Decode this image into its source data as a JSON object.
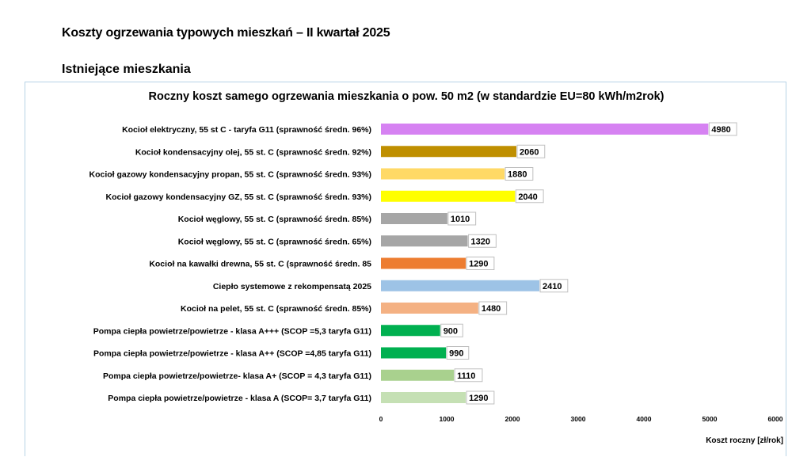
{
  "slide": {
    "title": "Koszty ogrzewania typowych mieszkań – II kwartał 2025",
    "subtitle": "Istniejące mieszkania"
  },
  "chart_data": {
    "type": "bar",
    "orientation": "horizontal",
    "title": "Roczny koszt samego ogrzewania mieszkania o pow. 50 m2 (w standardzie  EU=80 kWh/m2rok)",
    "xlabel": "Koszt roczny [zł/rok]",
    "ylabel": "",
    "xlim": [
      0,
      6000
    ],
    "xticks": [
      0,
      1000,
      2000,
      3000,
      4000,
      5000,
      6000
    ],
    "grid": false,
    "legend": "none",
    "categories": [
      "Kocioł  elektryczny, 55 st C -  taryfa G11 (sprawność średn. 96%)",
      "Kocioł  kondensacyjny olej, 55 st. C (sprawność średn. 92%)",
      "Kocioł gazowy kondensacyjny propan, 55 st. C (sprawność średn. 93%)",
      "Kocioł gazowy kondensacyjny GZ, 55 st. C (sprawność średn. 93%)",
      "Kocioł węglowy,  55 st. C (sprawność średn. 85%)",
      "Kocioł węglowy, 55 st. C (sprawność średn. 65%)",
      "Kocioł na kawałki drewna, 55 st. C (sprawność średn. 85",
      "Ciepło systemowe z rekompensatą 2025",
      "Kocioł na pelet, 55 st. C (sprawność średn. 85%)",
      "Pompa ciepła powietrze/powietrze -  klasa A+++ (SCOP =5,3 taryfa G11)",
      "Pompa ciepła powietrze/powietrze - klasa A++ (SCOP =4,85 taryfa G11)",
      "Pompa ciepła powietrze/powietrze-  klasa A+ (SCOP = 4,3 taryfa G11)",
      "Pompa ciepła powietrze/powietrze - klasa A (SCOP= 3,7 taryfa G11)"
    ],
    "values": [
      4980,
      2060,
      1880,
      2040,
      1010,
      1320,
      1290,
      2410,
      1480,
      900,
      990,
      1110,
      1290
    ],
    "colors": [
      "#d682f2",
      "#bf8f00",
      "#ffd966",
      "#ffff00",
      "#a6a6a6",
      "#a6a6a6",
      "#ed7d31",
      "#9dc3e6",
      "#f4b183",
      "#00b050",
      "#00b050",
      "#a9d18e",
      "#c5e0b4"
    ]
  }
}
